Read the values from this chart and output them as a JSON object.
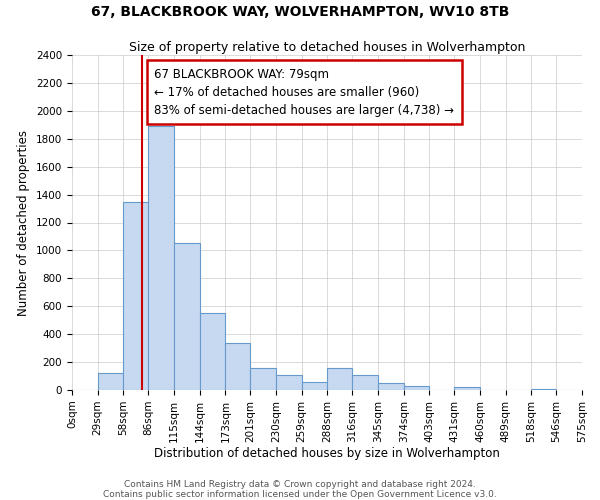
{
  "title": "67, BLACKBROOK WAY, WOLVERHAMPTON, WV10 8TB",
  "subtitle": "Size of property relative to detached houses in Wolverhampton",
  "xlabel": "Distribution of detached houses by size in Wolverhampton",
  "ylabel": "Number of detached properties",
  "bin_edges": [
    0,
    29,
    58,
    86,
    115,
    144,
    173,
    201,
    230,
    259,
    288,
    316,
    345,
    374,
    403,
    431,
    460,
    489,
    518,
    546,
    575
  ],
  "bin_counts": [
    0,
    125,
    1350,
    1890,
    1050,
    550,
    340,
    160,
    105,
    60,
    160,
    105,
    50,
    28,
    0,
    18,
    0,
    0,
    8,
    0
  ],
  "bar_color": "#c6d9f0",
  "bar_edge_color": "#6699cc",
  "bar_edge_width": 0.8,
  "property_size": 79,
  "red_line_color": "#cc0000",
  "annotation_line1": "67 BLACKBROOK WAY: 79sqm",
  "annotation_line2": "← 17% of detached houses are smaller (960)",
  "annotation_line3": "83% of semi-detached houses are larger (4,738) →",
  "annotation_box_color": "#ffffff",
  "annotation_box_edge": "#cc0000",
  "ylim": [
    0,
    2400
  ],
  "yticks": [
    0,
    200,
    400,
    600,
    800,
    1000,
    1200,
    1400,
    1600,
    1800,
    2000,
    2200,
    2400
  ],
  "tick_labels": [
    "0sqm",
    "29sqm",
    "58sqm",
    "86sqm",
    "115sqm",
    "144sqm",
    "173sqm",
    "201sqm",
    "230sqm",
    "259sqm",
    "288sqm",
    "316sqm",
    "345sqm",
    "374sqm",
    "403sqm",
    "431sqm",
    "460sqm",
    "489sqm",
    "518sqm",
    "546sqm",
    "575sqm"
  ],
  "footer_line1": "Contains HM Land Registry data © Crown copyright and database right 2024.",
  "footer_line2": "Contains public sector information licensed under the Open Government Licence v3.0.",
  "background_color": "#ffffff",
  "grid_color": "#cccccc",
  "title_fontsize": 10,
  "subtitle_fontsize": 9,
  "axis_label_fontsize": 8.5,
  "tick_fontsize": 7.5,
  "annotation_fontsize": 8.5,
  "footer_fontsize": 6.5
}
